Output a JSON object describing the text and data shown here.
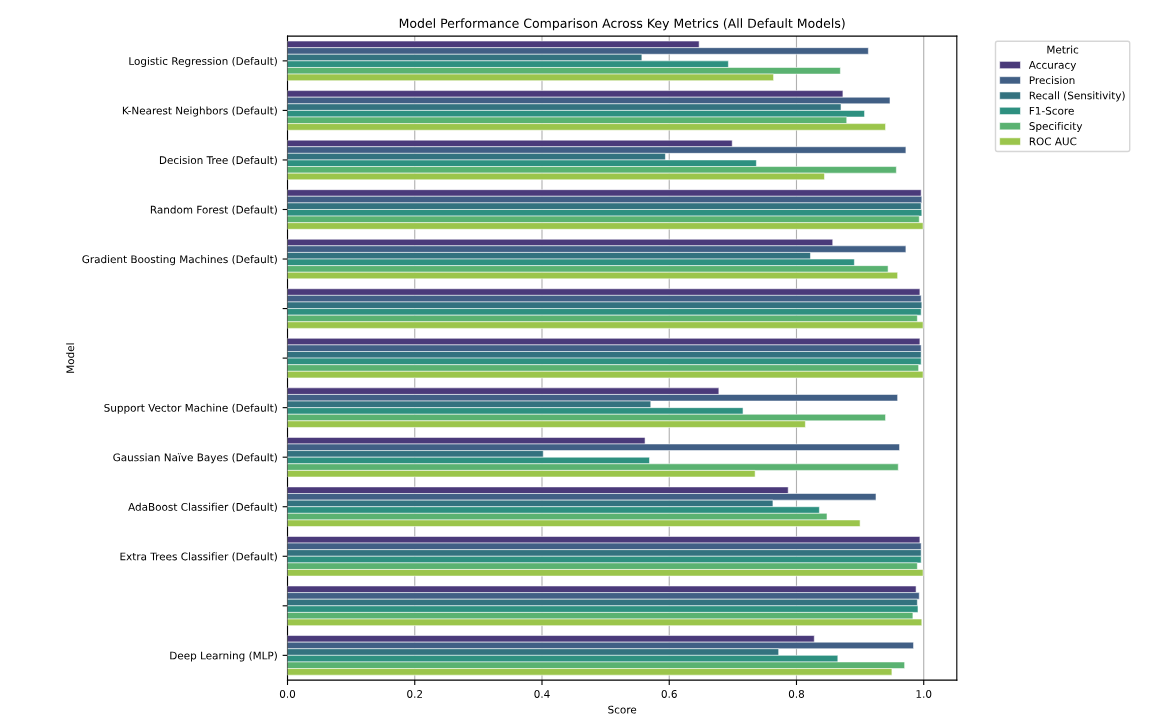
{
  "chart_data": {
    "type": "bar",
    "orientation": "horizontal",
    "title": "Model Performance Comparison Across Key Metrics (All Default Models)",
    "xlabel": "Score",
    "ylabel": "Model",
    "legend_title": "Metric",
    "legend": "top right outside",
    "categories": [
      "Logistic Regression (Default)",
      "K-Nearest Neighbors (Default)",
      "Decision Tree (Default)",
      "Random Forest (Default)",
      "Gradient Boosting Machines (Default)",
      null,
      null,
      "Support Vector Machine (Default)",
      "Gaussian Naïve Bayes (Default)",
      "AdaBoost Classifier (Default)",
      "Extra Trees Classifier (Default)",
      null,
      "Deep Learning (MLP)"
    ],
    "series": [
      {
        "name": "Accuracy",
        "color": "#4a3a7a",
        "values": [
          0.647,
          0.873,
          0.699,
          0.996,
          0.857,
          0.994,
          0.994,
          0.678,
          0.562,
          0.787,
          0.994,
          0.988,
          0.828
        ]
      },
      {
        "name": "Precision",
        "color": "#415f85",
        "values": [
          0.913,
          0.947,
          0.972,
          0.997,
          0.972,
          0.996,
          0.996,
          0.959,
          0.962,
          0.925,
          0.996,
          0.993,
          0.984
        ]
      },
      {
        "name": "Recall (Sensitivity)",
        "color": "#33727f",
        "values": [
          0.557,
          0.87,
          0.594,
          0.996,
          0.822,
          0.997,
          0.996,
          0.571,
          0.402,
          0.763,
          0.996,
          0.99,
          0.772
        ]
      },
      {
        "name": "F1-Score",
        "color": "#2e9080",
        "values": [
          0.693,
          0.907,
          0.737,
          0.997,
          0.891,
          0.996,
          0.996,
          0.716,
          0.569,
          0.836,
          0.996,
          0.991,
          0.865
        ]
      },
      {
        "name": "Specificity",
        "color": "#5ab271",
        "values": [
          0.869,
          0.879,
          0.957,
          0.993,
          0.944,
          0.99,
          0.992,
          0.94,
          0.96,
          0.848,
          0.99,
          0.983,
          0.97
        ]
      },
      {
        "name": "ROC AUC",
        "color": "#9bc54b",
        "values": [
          0.764,
          0.94,
          0.844,
          0.999,
          0.959,
          0.999,
          0.999,
          0.814,
          0.735,
          0.9,
          0.999,
          0.997,
          0.95
        ]
      }
    ],
    "xlim": [
      0,
      1.052
    ],
    "xticks": [
      {
        "value": 0,
        "label": "0.0"
      },
      {
        "value": 0.2,
        "label": "0.2"
      },
      {
        "value": 0.4,
        "label": "0.4"
      },
      {
        "value": 0.6,
        "label": "0.6"
      },
      {
        "value": 0.8,
        "label": "0.8"
      },
      {
        "value": 1.0,
        "label": "1.0"
      }
    ],
    "grid": "x"
  }
}
